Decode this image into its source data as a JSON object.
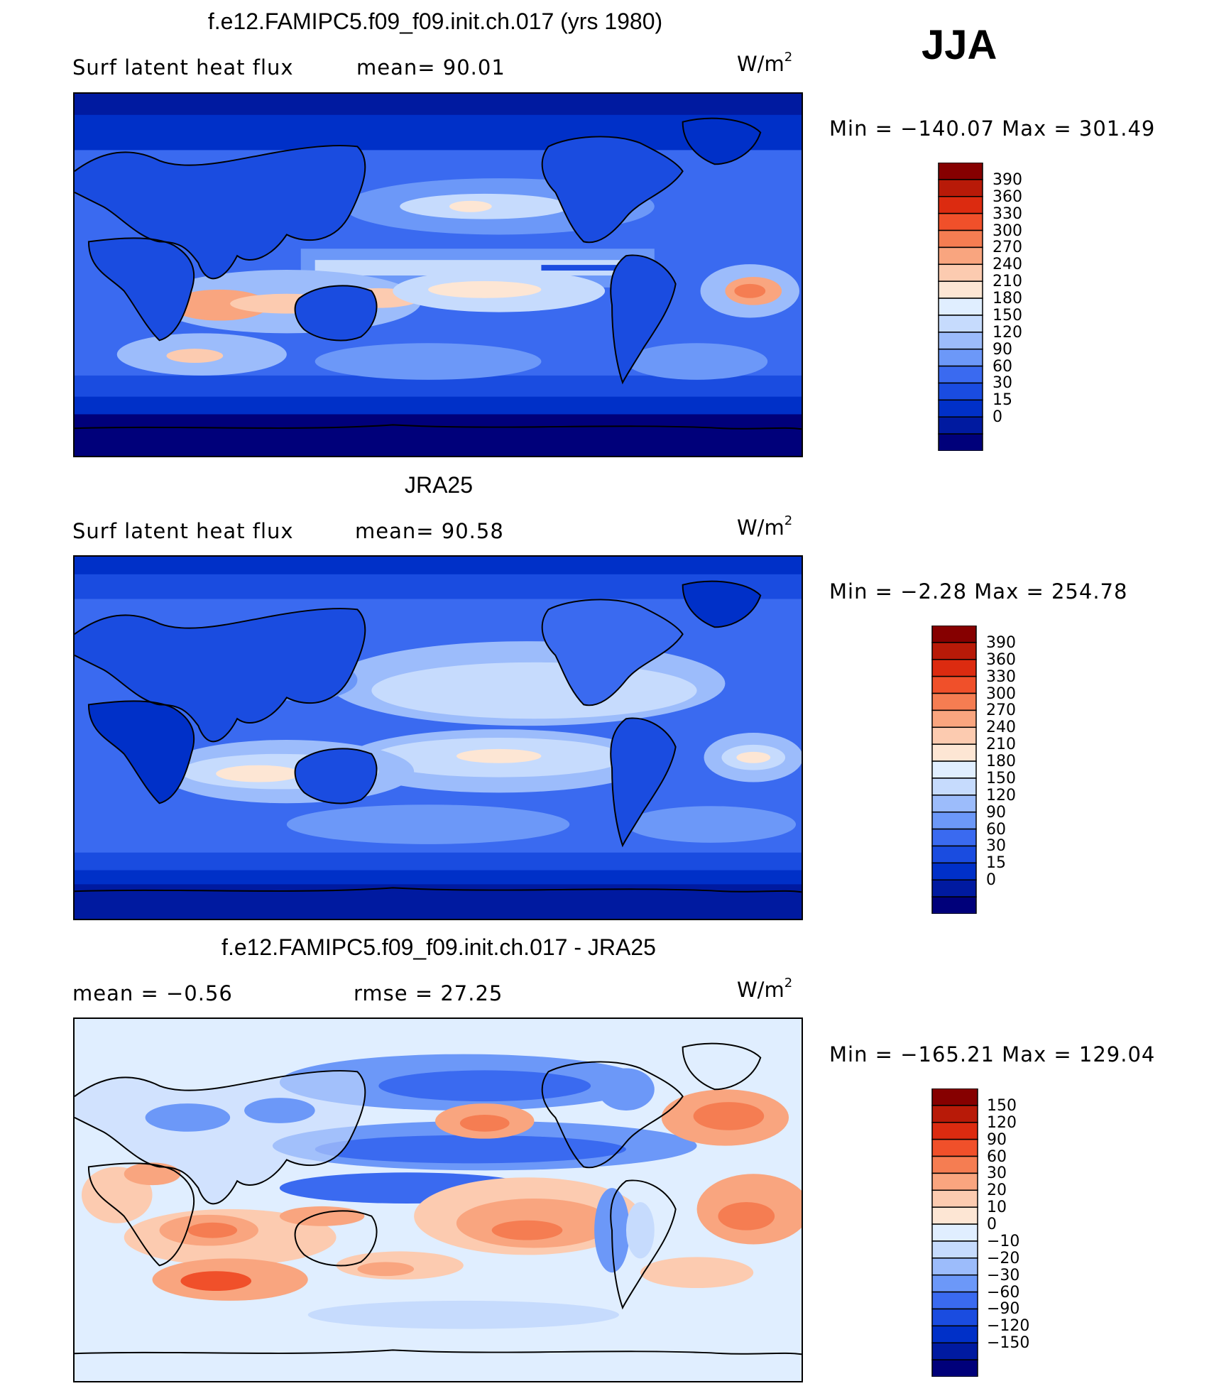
{
  "season": "JJA",
  "colors": {
    "main_scale": [
      "#00007a",
      "#001aa0",
      "#0030c8",
      "#1a4ce0",
      "#3a6af0",
      "#6c98f8",
      "#9cbcfb",
      "#c6dbfd",
      "#e0eeff",
      "#fde6d4",
      "#fccbb0",
      "#f9a57f",
      "#f57d52",
      "#f0502a",
      "#dc2b10",
      "#b81a08",
      "#860000"
    ],
    "diff_scale": [
      "#00007a",
      "#001aa0",
      "#0030c8",
      "#1a4ce0",
      "#3a6af0",
      "#6c98f8",
      "#9cbcfb",
      "#c6dbfd",
      "#e0eeff",
      "#fde6d4",
      "#fccbb0",
      "#f9a57f",
      "#f57d52",
      "#f0502a",
      "#dc2b10",
      "#b81a08",
      "#860000"
    ]
  },
  "panels": [
    {
      "id": "model",
      "title": "f.e12.FAMIPC5.f09_f09.init.ch.017 (yrs 1980)",
      "left_label": "Surf  latent  heat  flux",
      "center_label": "mean=   90.01",
      "units": "W/m",
      "units_sup": "2",
      "minmax": "Min  =  −140.07  Max  =  301.49",
      "levels": [
        "390",
        "360",
        "330",
        "300",
        "270",
        "240",
        "210",
        "180",
        "150",
        "120",
        "90",
        "60",
        "30",
        "15",
        "0"
      ]
    },
    {
      "id": "obs",
      "title": "JRA25",
      "left_label": "Surf  latent  heat  flux",
      "center_label": "mean=   90.58",
      "units": "W/m",
      "units_sup": "2",
      "minmax": "Min  =    −2.28  Max  =  254.78",
      "levels": [
        "390",
        "360",
        "330",
        "300",
        "270",
        "240",
        "210",
        "180",
        "150",
        "120",
        "90",
        "60",
        "30",
        "15",
        "0"
      ]
    },
    {
      "id": "diff",
      "title": "f.e12.FAMIPC5.f09_f09.init.ch.017 - JRA25",
      "left_label": "mean  =    −0.56",
      "center_label": "rmse  =    27.25",
      "units": "W/m",
      "units_sup": "2",
      "minmax": "Min  =  −165.21  Max  =  129.04",
      "levels": [
        "150",
        "120",
        "90",
        "60",
        "30",
        "20",
        "10",
        "0",
        "−10",
        "−20",
        "−30",
        "−60",
        "−90",
        "−120",
        "−150"
      ]
    }
  ]
}
